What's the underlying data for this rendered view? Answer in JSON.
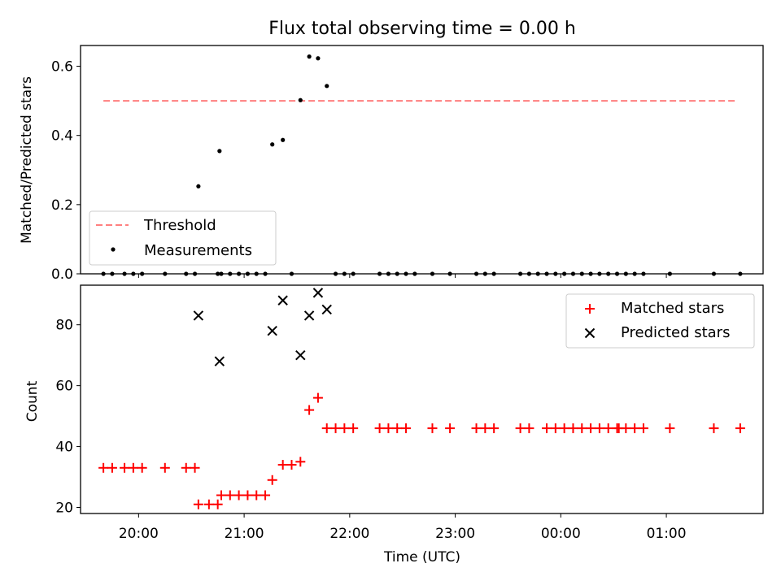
{
  "chart_data": [
    {
      "type": "scatter",
      "title": "Flux total observing time = 0.00 h",
      "xlabel": "",
      "ylabel": "Matched/Predicted stars",
      "ylim": [
        0,
        0.66
      ],
      "yticks": [
        0.0,
        0.2,
        0.4,
        0.6
      ],
      "ytick_labels": [
        "0.0",
        "0.2",
        "0.4",
        "0.6"
      ],
      "legend_position": "lower-left",
      "threshold": {
        "name": "Threshold",
        "value": 0.5,
        "x_start": "19:40",
        "x_end": "01:40",
        "color": "#ff7f7f"
      },
      "measurements": {
        "name": "Measurements",
        "color": "#000000",
        "points": [
          [
            "19:40",
            0
          ],
          [
            "19:45",
            0
          ],
          [
            "19:52",
            0
          ],
          [
            "19:57",
            0
          ],
          [
            "20:02",
            0
          ],
          [
            "20:15",
            0
          ],
          [
            "20:27",
            0
          ],
          [
            "20:32",
            0
          ],
          [
            "20:34",
            0.253
          ],
          [
            "20:45",
            0
          ],
          [
            "20:47",
            0
          ],
          [
            "20:46",
            0.355
          ],
          [
            "20:52",
            0
          ],
          [
            "20:57",
            0
          ],
          [
            "21:02",
            0
          ],
          [
            "21:07",
            0
          ],
          [
            "21:12",
            0
          ],
          [
            "21:16",
            0.374
          ],
          [
            "21:22",
            0.387
          ],
          [
            "21:27",
            0
          ],
          [
            "21:32",
            0.502
          ],
          [
            "21:37",
            0.628
          ],
          [
            "21:42",
            0.623
          ],
          [
            "21:47",
            0.543
          ],
          [
            "21:52",
            0
          ],
          [
            "21:57",
            0
          ],
          [
            "22:02",
            0
          ],
          [
            "22:17",
            0
          ],
          [
            "22:22",
            0
          ],
          [
            "22:27",
            0
          ],
          [
            "22:32",
            0
          ],
          [
            "22:37",
            0
          ],
          [
            "22:47",
            0
          ],
          [
            "22:57",
            0
          ],
          [
            "23:12",
            0
          ],
          [
            "23:17",
            0
          ],
          [
            "23:22",
            0
          ],
          [
            "23:37",
            0
          ],
          [
            "23:42",
            0
          ],
          [
            "23:47",
            0
          ],
          [
            "23:52",
            0
          ],
          [
            "23:57",
            0
          ],
          [
            "00:02",
            0
          ],
          [
            "00:07",
            0
          ],
          [
            "00:12",
            0
          ],
          [
            "00:17",
            0
          ],
          [
            "00:22",
            0
          ],
          [
            "00:27",
            0
          ],
          [
            "00:32",
            0
          ],
          [
            "00:37",
            0
          ],
          [
            "00:42",
            0
          ],
          [
            "00:47",
            0
          ],
          [
            "01:02",
            0
          ],
          [
            "01:27",
            0
          ],
          [
            "01:42",
            0
          ]
        ]
      }
    },
    {
      "type": "scatter",
      "title": "",
      "xlabel": "Time (UTC)",
      "ylabel": "Count",
      "ylim": [
        18,
        93
      ],
      "yticks": [
        20,
        40,
        60,
        80
      ],
      "ytick_labels": [
        "20",
        "40",
        "60",
        "80"
      ],
      "xlim": [
        "19:27",
        "01:55"
      ],
      "xticks": [
        "20:00",
        "21:00",
        "22:00",
        "23:00",
        "00:00",
        "01:00"
      ],
      "xtick_labels": [
        "20:00",
        "21:00",
        "22:00",
        "23:00",
        "00:00",
        "01:00"
      ],
      "legend_position": "upper-right",
      "series": [
        {
          "name": "Matched stars",
          "marker": "+",
          "color": "#ff0000",
          "points": [
            [
              "19:40",
              33
            ],
            [
              "19:45",
              33
            ],
            [
              "19:52",
              33
            ],
            [
              "19:57",
              33
            ],
            [
              "20:02",
              33
            ],
            [
              "20:15",
              33
            ],
            [
              "20:27",
              33
            ],
            [
              "20:32",
              33
            ],
            [
              "20:34",
              21
            ],
            [
              "20:40",
              21
            ],
            [
              "20:45",
              21
            ],
            [
              "20:47",
              24
            ],
            [
              "20:52",
              24
            ],
            [
              "20:57",
              24
            ],
            [
              "21:02",
              24
            ],
            [
              "21:07",
              24
            ],
            [
              "21:12",
              24
            ],
            [
              "21:16",
              29
            ],
            [
              "21:22",
              34
            ],
            [
              "21:27",
              34
            ],
            [
              "21:32",
              35
            ],
            [
              "21:37",
              52
            ],
            [
              "21:42",
              56
            ],
            [
              "21:47",
              46
            ],
            [
              "21:52",
              46
            ],
            [
              "21:57",
              46
            ],
            [
              "22:02",
              46
            ],
            [
              "22:17",
              46
            ],
            [
              "22:22",
              46
            ],
            [
              "22:27",
              46
            ],
            [
              "22:32",
              46
            ],
            [
              "22:47",
              46
            ],
            [
              "22:57",
              46
            ],
            [
              "23:12",
              46
            ],
            [
              "23:17",
              46
            ],
            [
              "23:22",
              46
            ],
            [
              "23:37",
              46
            ],
            [
              "23:42",
              46
            ],
            [
              "23:52",
              46
            ],
            [
              "23:57",
              46
            ],
            [
              "00:02",
              46
            ],
            [
              "00:07",
              46
            ],
            [
              "00:12",
              46
            ],
            [
              "00:17",
              46
            ],
            [
              "00:22",
              46
            ],
            [
              "00:27",
              46
            ],
            [
              "00:32",
              46
            ],
            [
              "00:33",
              46
            ],
            [
              "00:37",
              46
            ],
            [
              "00:42",
              46
            ],
            [
              "00:47",
              46
            ],
            [
              "01:02",
              46
            ],
            [
              "01:27",
              46
            ],
            [
              "01:42",
              46
            ]
          ]
        },
        {
          "name": "Predicted stars",
          "marker": "x",
          "color": "#000000",
          "points": [
            [
              "20:34",
              83
            ],
            [
              "20:46",
              68
            ],
            [
              "21:16",
              78
            ],
            [
              "21:22",
              88
            ],
            [
              "21:32",
              70
            ],
            [
              "21:37",
              83
            ],
            [
              "21:42",
              90.5
            ],
            [
              "21:47",
              85
            ]
          ]
        }
      ]
    }
  ]
}
